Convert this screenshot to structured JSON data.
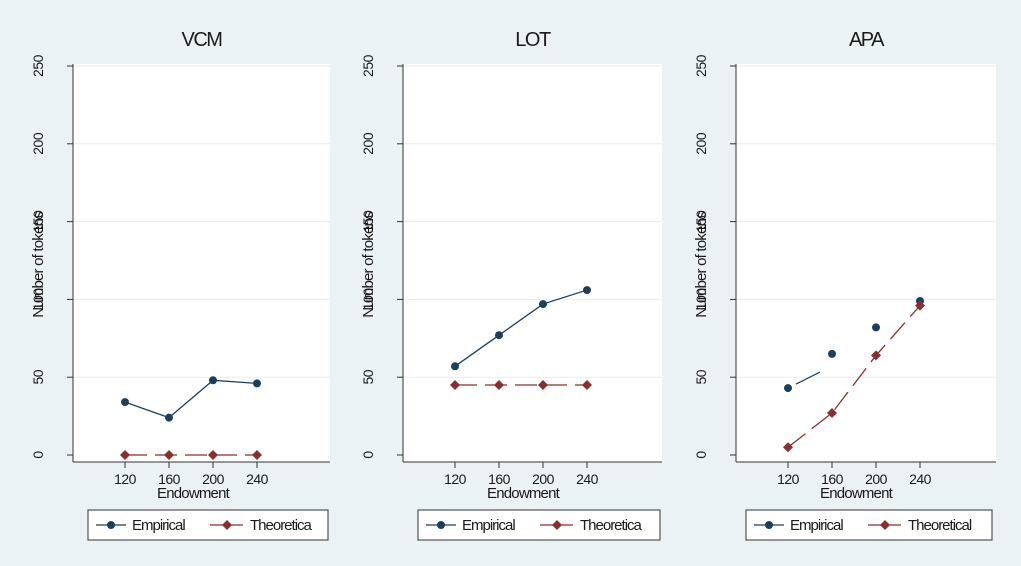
{
  "chart_data": [
    {
      "type": "line",
      "title": "VCM",
      "xlabel": "Endowment",
      "ylabel": "Number of tokens",
      "x": [
        120,
        160,
        200,
        240
      ],
      "x_ticks": [
        120,
        160,
        200,
        240
      ],
      "y_ticks": [
        0,
        50,
        100,
        150,
        200,
        250
      ],
      "ylim": [
        0,
        250
      ],
      "series": [
        {
          "name": "Empirical",
          "marker": "circle",
          "line": "solid",
          "color": "#1c3f5e",
          "values": [
            34,
            24,
            48,
            46
          ]
        },
        {
          "name": "Theoretical",
          "marker": "diamond",
          "line": "dashed",
          "color": "#8b2e2e",
          "values": [
            0,
            0,
            0,
            0
          ]
        }
      ],
      "legend": {
        "position": "bottom",
        "labels": [
          "Empirical",
          "Theoretica"
        ]
      }
    },
    {
      "type": "line",
      "title": "LOT",
      "xlabel": "Endowment",
      "ylabel": "Number of tokens",
      "x": [
        120,
        160,
        200,
        240
      ],
      "x_ticks": [
        120,
        160,
        200,
        240
      ],
      "y_ticks": [
        0,
        50,
        100,
        150,
        200,
        250
      ],
      "ylim": [
        0,
        250
      ],
      "series": [
        {
          "name": "Empirical",
          "marker": "circle",
          "line": "solid",
          "color": "#1c3f5e",
          "values": [
            57,
            77,
            97,
            106
          ]
        },
        {
          "name": "Theoretical",
          "marker": "diamond",
          "line": "dashed",
          "color": "#8b2e2e",
          "values": [
            45,
            45,
            45,
            45
          ]
        }
      ],
      "legend": {
        "position": "bottom",
        "labels": [
          "Empirical",
          "Theoretica"
        ]
      }
    },
    {
      "type": "line",
      "title": "APA",
      "xlabel": "Endowment",
      "ylabel": "Number of tokens",
      "x": [
        120,
        160,
        200,
        240
      ],
      "x_ticks": [
        120,
        160,
        200,
        240
      ],
      "y_ticks": [
        0,
        50,
        100,
        150,
        200,
        250
      ],
      "ylim": [
        0,
        250
      ],
      "series": [
        {
          "name": "Empirical",
          "marker": "circle",
          "line": "dashed",
          "color": "#1c3f5e",
          "values": [
            43,
            65,
            82,
            99
          ]
        },
        {
          "name": "Theoretical",
          "marker": "diamond",
          "line": "dashed",
          "color": "#8b2e2e",
          "values": [
            5,
            27,
            64,
            96
          ]
        }
      ],
      "legend": {
        "position": "bottom",
        "labels": [
          "Empirical",
          "Theoretical"
        ]
      }
    }
  ]
}
